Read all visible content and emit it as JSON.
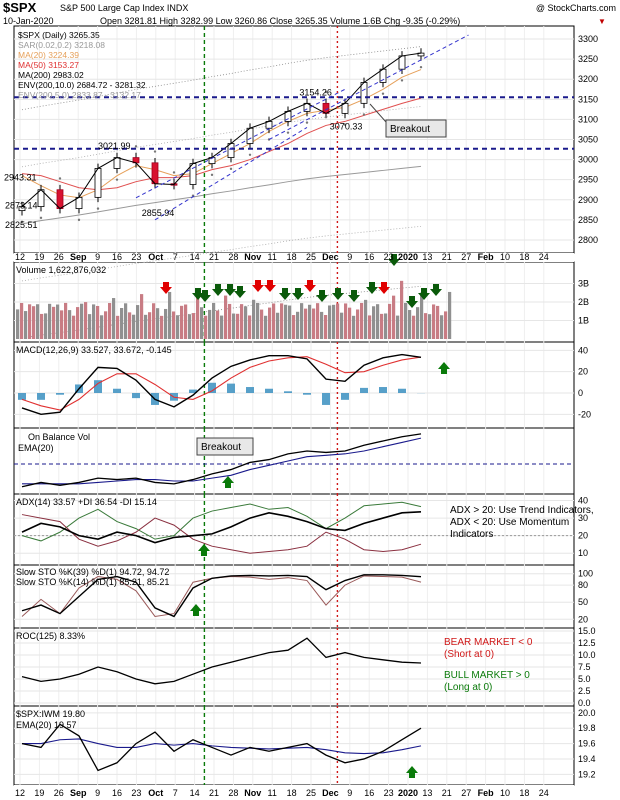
{
  "header": {
    "symbol": "$SPX",
    "exchange_name": "S&P 500 Large Cap Index  INDX",
    "watermark": "@ StockCharts.com",
    "date": "10-Jan-2020",
    "open_label": "Open",
    "open": "3281.81",
    "high_label": "High",
    "high": "3282.99",
    "low_label": "Low",
    "low": "3260.86",
    "close_label": "Close",
    "close": "3265.35",
    "volume_label": "Volume",
    "volume": "1.6B",
    "chg_label": "Chg",
    "chg": "-9.35 (-0.29%)",
    "chg_marker": "▼"
  },
  "price_legend": [
    {
      "text": "$SPX (Daily) 3265.35",
      "color": "#000000"
    },
    {
      "text": "SAR(0.02,0.2) 3218.08",
      "color": "#999999"
    },
    {
      "text": "MA(20) 3224.39",
      "color": "#e6a05a"
    },
    {
      "text": "MA(50) 3153.27",
      "color": "#e03030"
    },
    {
      "text": "MA(200) 2983.02",
      "color": "#000000"
    },
    {
      "text": "ENV(200,10.0) 2684.72 - 3281.32",
      "color": "#000000"
    },
    {
      "text": "ENV(200,5.0) 2833.87 - 3132.17",
      "color": "#999999"
    }
  ],
  "annotations": {
    "breakout_price": "Breakout",
    "breakout_obv": "Breakout",
    "adx_note": [
      "ADX > 20: Use Trend Indicators,",
      "ADX < 20: Use Momentum",
      "Indicators"
    ],
    "roc_bear": [
      "BEAR MARKET < 0",
      "(Short at 0)"
    ],
    "roc_bull": [
      "BULL MARKET > 0",
      "(Long at 0)"
    ],
    "price_labels": [
      "2943.31",
      "2873.14",
      "2825.51",
      "3021.99",
      "2855.94",
      "3154.26",
      "3070.33"
    ]
  },
  "x_axis_labels": [
    "12",
    "19",
    "26",
    "Sep",
    "9",
    "16",
    "23",
    "Oct",
    "7",
    "14",
    "21",
    "28",
    "Nov",
    "11",
    "18",
    "25",
    "Dec",
    "9",
    "16",
    "23",
    "2020",
    "13",
    "21",
    "27",
    "Feb",
    "10",
    "18",
    "24"
  ],
  "chart_data": [
    {
      "type": "line",
      "panel": "price",
      "title": "$SPX (Daily) 3265.35",
      "ylim": [
        2775,
        3325
      ],
      "y_ticks": [
        2800,
        2850,
        2900,
        2950,
        3000,
        3050,
        3100,
        3150,
        3200,
        3250,
        3300
      ],
      "x": [
        "Aug 12",
        "Aug 19",
        "Aug 26",
        "Sep 3",
        "Sep 9",
        "Sep 16",
        "Sep 23",
        "Oct 1",
        "Oct 7",
        "Oct 14",
        "Oct 21",
        "Oct 28",
        "Nov 4",
        "Nov 11",
        "Nov 18",
        "Nov 25",
        "Dec 2",
        "Dec 9",
        "Dec 16",
        "Dec 23",
        "Jan 2",
        "Jan 10"
      ],
      "series": [
        {
          "name": "$SPX (Daily)",
          "values": [
            2883,
            2925,
            2878,
            2906,
            2978,
            3005,
            2992,
            2940,
            2938,
            2990,
            3005,
            3040,
            3078,
            3095,
            3120,
            3140,
            3115,
            3140,
            3192,
            3225,
            3258,
            3265
          ]
        },
        {
          "name": "MA(20)",
          "values": [
            2960,
            2935,
            2912,
            2905,
            2925,
            2960,
            2985,
            2975,
            2960,
            2965,
            2990,
            3015,
            3040,
            3070,
            3095,
            3115,
            3123,
            3130,
            3150,
            3175,
            3205,
            3224
          ]
        },
        {
          "name": "MA(50)",
          "values": [
            2965,
            2960,
            2945,
            2930,
            2925,
            2930,
            2945,
            2955,
            2955,
            2960,
            2975,
            2985,
            3000,
            3020,
            3040,
            3065,
            3085,
            3095,
            3110,
            3125,
            3140,
            3153
          ]
        },
        {
          "name": "MA(200)",
          "values": [
            2840,
            2848,
            2855,
            2862,
            2870,
            2878,
            2886,
            2893,
            2900,
            2907,
            2915,
            2922,
            2930,
            2937,
            2945,
            2952,
            2958,
            2963,
            2968,
            2973,
            2978,
            2983
          ]
        }
      ],
      "horizontal_lines": [
        3027,
        3155
      ],
      "vertical_lines": [
        "Oct 11",
        "Dec 3"
      ]
    },
    {
      "type": "bar",
      "panel": "volume",
      "title": "Volume 1,622,876,032",
      "ylim": [
        0,
        4
      ],
      "y_ticks": [
        "1B",
        "2B",
        "3B"
      ]
    },
    {
      "type": "line",
      "panel": "macd",
      "title": "MACD(12,26,9) 33.527, 33.672, -0.145",
      "ylim": [
        -30,
        45
      ],
      "y_ticks": [
        -20,
        0,
        20,
        40
      ],
      "series": [
        {
          "name": "MACD",
          "values": [
            -14,
            -20,
            -18,
            4,
            24,
            23,
            12,
            -6,
            -13,
            -2,
            14,
            25,
            31,
            35,
            35,
            32,
            13,
            11,
            26,
            33,
            36,
            33.5
          ]
        },
        {
          "name": "Signal",
          "values": [
            -6,
            -12,
            -16,
            -6,
            9,
            18,
            18,
            8,
            -4,
            -6,
            2,
            14,
            24,
            30,
            33,
            34,
            27,
            19,
            20,
            26,
            31,
            33.7
          ]
        }
      ]
    },
    {
      "type": "line",
      "panel": "obv",
      "title": "On Balance Vol",
      "series": [
        {
          "name": "On Balance Vol",
          "values": [
            3,
            6,
            4,
            6,
            9,
            8,
            9,
            6,
            5,
            8,
            12,
            15,
            20,
            22,
            26,
            28,
            27,
            28,
            32,
            35,
            38,
            40
          ]
        },
        {
          "name": "EMA(20)",
          "values": [
            5,
            5,
            5,
            5,
            6,
            7,
            8,
            8,
            7,
            7,
            9,
            11,
            15,
            18,
            21,
            24,
            25,
            26,
            28,
            31,
            34,
            37
          ]
        }
      ]
    },
    {
      "type": "line",
      "panel": "adx",
      "title": "ADX(14) 33.57 +DI 36.54 -DI 15.14",
      "ylim": [
        5,
        42
      ],
      "y_ticks": [
        10,
        20,
        30,
        40
      ],
      "series": [
        {
          "name": "ADX(14)",
          "values": [
            22,
            27,
            25,
            20,
            18,
            22,
            20,
            16,
            19,
            20,
            21,
            25,
            30,
            33,
            31,
            28,
            24,
            23,
            27,
            30,
            33,
            33.57
          ]
        },
        {
          "name": "+DI",
          "values": [
            20,
            17,
            22,
            30,
            35,
            28,
            24,
            18,
            20,
            30,
            34,
            36,
            38,
            35,
            36,
            31,
            24,
            30,
            37,
            38,
            39,
            36.54
          ]
        },
        {
          "name": "-DI",
          "values": [
            32,
            30,
            28,
            18,
            14,
            17,
            22,
            30,
            26,
            18,
            14,
            12,
            10,
            11,
            12,
            14,
            22,
            18,
            12,
            11,
            12,
            15.14
          ]
        }
      ]
    },
    {
      "type": "line",
      "panel": "stochastics",
      "title": "Slow STO %K(39) %D(1) 94.72, 94.72 / Slow STO %K(14) %D(1) 85.21, 85.21",
      "ylim": [
        10,
        110
      ],
      "y_ticks": [
        20,
        50,
        80,
        100
      ],
      "series": [
        {
          "name": "Slow STO %K(39)",
          "values": [
            35,
            45,
            30,
            60,
            90,
            95,
            85,
            40,
            25,
            75,
            92,
            96,
            97,
            96,
            97,
            95,
            72,
            88,
            98,
            98,
            97,
            94.72
          ]
        },
        {
          "name": "Slow STO %K(14)",
          "values": [
            25,
            55,
            30,
            75,
            95,
            90,
            70,
            25,
            30,
            85,
            92,
            95,
            94,
            90,
            93,
            88,
            45,
            80,
            96,
            95,
            94,
            85.21
          ]
        }
      ]
    },
    {
      "type": "line",
      "panel": "roc",
      "title": "ROC(125) 8.33%",
      "ylim": [
        0,
        15
      ],
      "y_ticks": [
        0.0,
        2.5,
        5.0,
        7.5,
        10.0,
        12.5,
        15.0
      ],
      "series": [
        {
          "name": "ROC(125)",
          "values": [
            5.5,
            4.5,
            5.0,
            6.0,
            7.5,
            6.5,
            5.0,
            4.0,
            4.5,
            6.0,
            7.5,
            8.5,
            9.5,
            10.5,
            11.0,
            13.5,
            9.5,
            10.5,
            9.5,
            9.0,
            8.5,
            8.33
          ]
        }
      ]
    },
    {
      "type": "line",
      "panel": "ratio",
      "title": "$SPX:IWM 19.80",
      "ylim": [
        19.1,
        20.05
      ],
      "y_ticks": [
        19.2,
        19.4,
        19.6,
        19.8,
        20.0
      ],
      "series": [
        {
          "name": "$SPX:IWM",
          "values": [
            19.6,
            19.55,
            19.85,
            19.7,
            19.25,
            19.35,
            19.6,
            19.75,
            19.5,
            19.65,
            19.55,
            19.45,
            19.55,
            19.5,
            19.55,
            19.6,
            19.45,
            19.35,
            19.4,
            19.5,
            19.65,
            19.8
          ]
        },
        {
          "name": "EMA(20)",
          "values": [
            19.6,
            19.6,
            19.65,
            19.66,
            19.6,
            19.55,
            19.55,
            19.6,
            19.58,
            19.6,
            19.57,
            19.55,
            19.54,
            19.53,
            19.54,
            19.55,
            19.52,
            19.48,
            19.47,
            19.48,
            19.52,
            19.57
          ]
        }
      ]
    }
  ]
}
